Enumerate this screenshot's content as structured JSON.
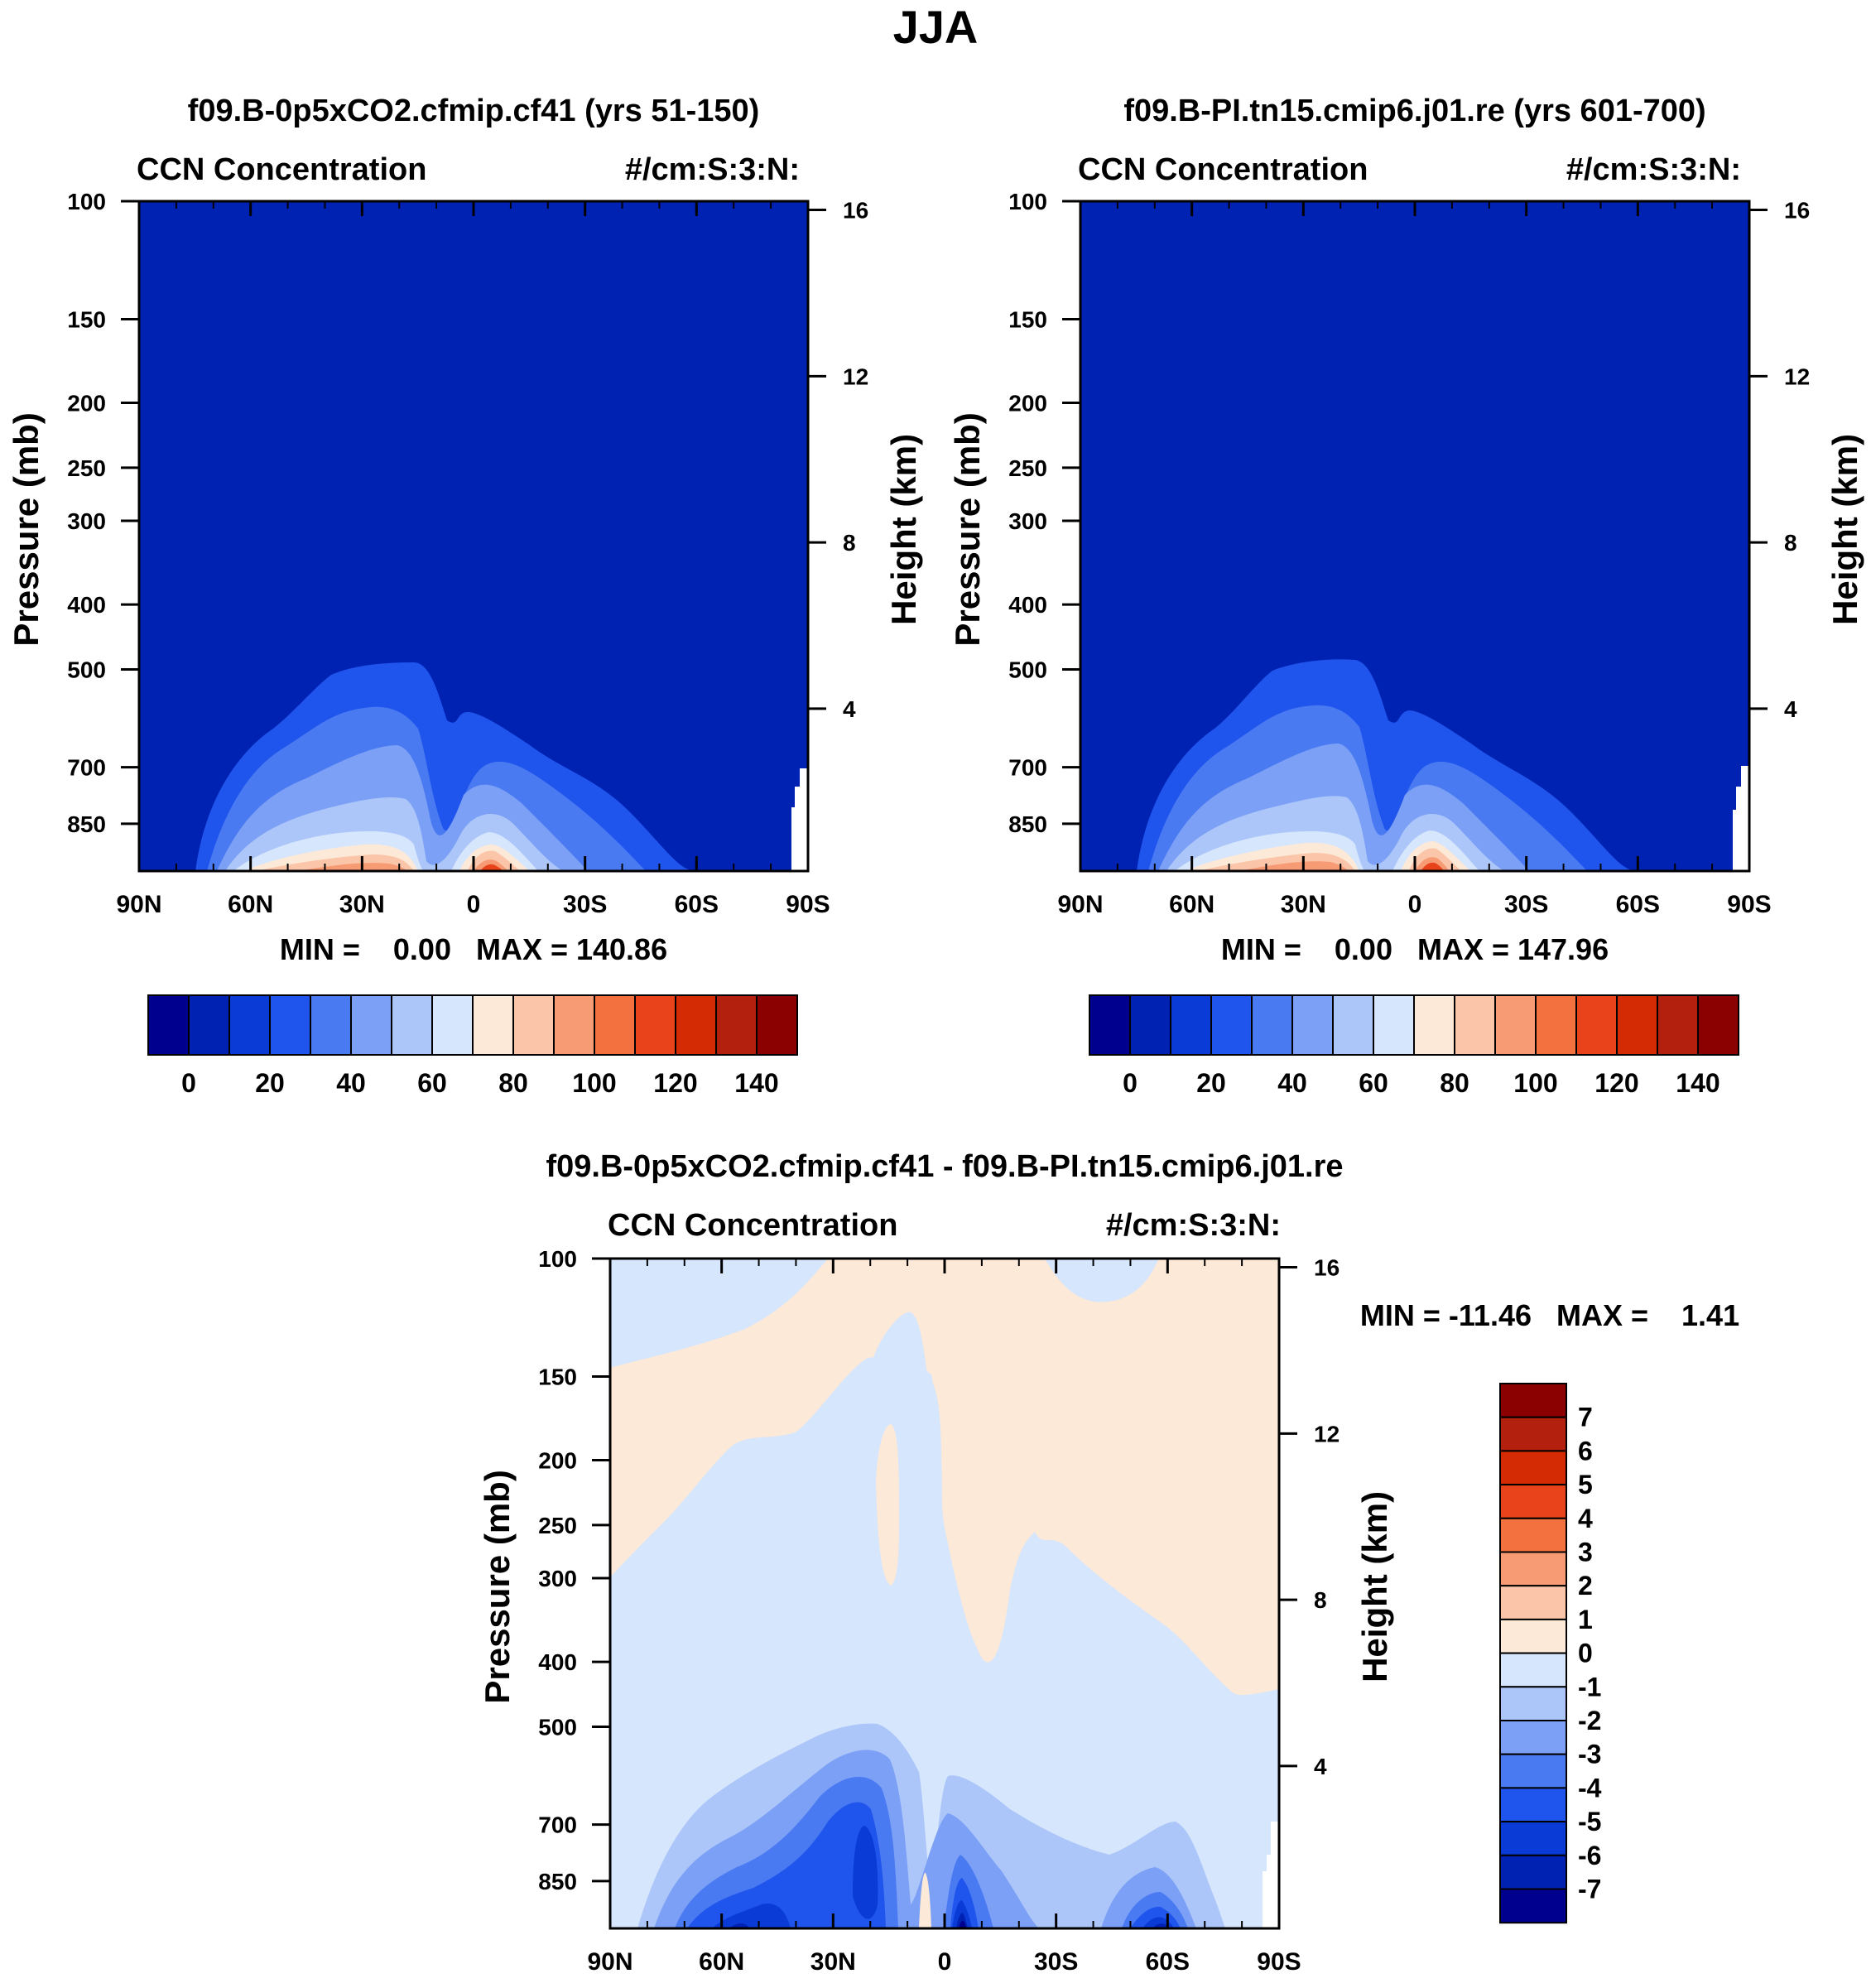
{
  "page": {
    "title": "JJA"
  },
  "chart_data": [
    {
      "type": "contour",
      "title": "f09.B-0p5xCO2.cfmip.cf41 (yrs 51-150)",
      "variable": "CCN Concentration",
      "units": "#/cm:S:3:N:",
      "ylabel": "Pressure (mb)",
      "ylabel_right": "Height (km)",
      "x_ticks": [
        "90N",
        "60N",
        "30N",
        "0",
        "30S",
        "60S",
        "90S"
      ],
      "x_values": [
        90,
        60,
        30,
        0,
        -30,
        -60,
        -90
      ],
      "y_ticks": [
        "100",
        "150",
        "200",
        "250",
        "300",
        "400",
        "500",
        "700",
        "850"
      ],
      "y_values": [
        100,
        150,
        200,
        250,
        300,
        400,
        500,
        700,
        850
      ],
      "y_right_ticks": [
        "16",
        "12",
        "8",
        "4"
      ],
      "y_right_values": [
        16,
        12,
        8,
        4
      ],
      "ylim": [
        100,
        1000
      ],
      "stats": "MIN =    0.00   MAX = 140.86",
      "min": 0.0,
      "max": 140.86,
      "colorbar_labels": [
        "0",
        "20",
        "40",
        "60",
        "80",
        "100",
        "120",
        "140"
      ],
      "levels": [
        0,
        10,
        20,
        30,
        40,
        50,
        60,
        70,
        80,
        90,
        100,
        110,
        120,
        130,
        140
      ]
    },
    {
      "type": "contour",
      "title": "f09.B-PI.tn15.cmip6.j01.re (yrs 601-700)",
      "variable": "CCN Concentration",
      "units": "#/cm:S:3:N:",
      "ylabel": "Pressure (mb)",
      "ylabel_right": "Height (km)",
      "x_ticks": [
        "90N",
        "60N",
        "30N",
        "0",
        "30S",
        "60S",
        "90S"
      ],
      "x_values": [
        90,
        60,
        30,
        0,
        -30,
        -60,
        -90
      ],
      "y_ticks": [
        "100",
        "150",
        "200",
        "250",
        "300",
        "400",
        "500",
        "700",
        "850"
      ],
      "y_values": [
        100,
        150,
        200,
        250,
        300,
        400,
        500,
        700,
        850
      ],
      "y_right_ticks": [
        "16",
        "12",
        "8",
        "4"
      ],
      "y_right_values": [
        16,
        12,
        8,
        4
      ],
      "ylim": [
        100,
        1000
      ],
      "stats": "MIN =    0.00   MAX = 147.96",
      "min": 0.0,
      "max": 147.96,
      "colorbar_labels": [
        "0",
        "20",
        "40",
        "60",
        "80",
        "100",
        "120",
        "140"
      ],
      "levels": [
        0,
        10,
        20,
        30,
        40,
        50,
        60,
        70,
        80,
        90,
        100,
        110,
        120,
        130,
        140
      ]
    },
    {
      "type": "contour",
      "title": "f09.B-0p5xCO2.cfmip.cf41 - f09.B-PI.tn15.cmip6.j01.re",
      "variable": "CCN Concentration",
      "units": "#/cm:S:3:N:",
      "ylabel": "Pressure (mb)",
      "ylabel_right": "Height (km)",
      "x_ticks": [
        "90N",
        "60N",
        "30N",
        "0",
        "30S",
        "60S",
        "90S"
      ],
      "x_values": [
        90,
        60,
        30,
        0,
        -30,
        -60,
        -90
      ],
      "y_ticks": [
        "100",
        "150",
        "200",
        "250",
        "300",
        "400",
        "500",
        "700",
        "850"
      ],
      "y_values": [
        100,
        150,
        200,
        250,
        300,
        400,
        500,
        700,
        850
      ],
      "y_right_ticks": [
        "16",
        "12",
        "8",
        "4"
      ],
      "y_right_values": [
        16,
        12,
        8,
        4
      ],
      "ylim": [
        100,
        1000
      ],
      "stats": "MIN = -11.46   MAX =    1.41",
      "min": -11.46,
      "max": 1.41,
      "colorbar_labels": [
        "7",
        "6",
        "5",
        "4",
        "3",
        "2",
        "1",
        "0",
        "-1",
        "-2",
        "-3",
        "-4",
        "-5",
        "-6",
        "-7"
      ],
      "levels": [
        7,
        6,
        5,
        4,
        3,
        2,
        1,
        0,
        -1,
        -2,
        -3,
        -4,
        -5,
        -6,
        -7
      ]
    }
  ],
  "colors": {
    "palette_mean": [
      "#00008f",
      "#0022b3",
      "#0a3bd6",
      "#1f55ec",
      "#4a7af2",
      "#7ba0f5",
      "#adc6fa",
      "#d6e6fc",
      "#fde9d8",
      "#fac5a9",
      "#f79b74",
      "#f3713f",
      "#e8431b",
      "#d42b05",
      "#b3200d",
      "#8b0000"
    ],
    "palette_diff": [
      "#8b0000",
      "#b3200d",
      "#d42b05",
      "#e8431b",
      "#f3713f",
      "#f79b74",
      "#fac5a9",
      "#fde9d8",
      "#d6e6fc",
      "#adc6fa",
      "#7ba0f5",
      "#4a7af2",
      "#1f55ec",
      "#0a3bd6",
      "#0022b3",
      "#00008f"
    ],
    "background_field": "#0022b3",
    "diff_background": "#d6e6fc",
    "diff_positive": "#fde9d8"
  }
}
